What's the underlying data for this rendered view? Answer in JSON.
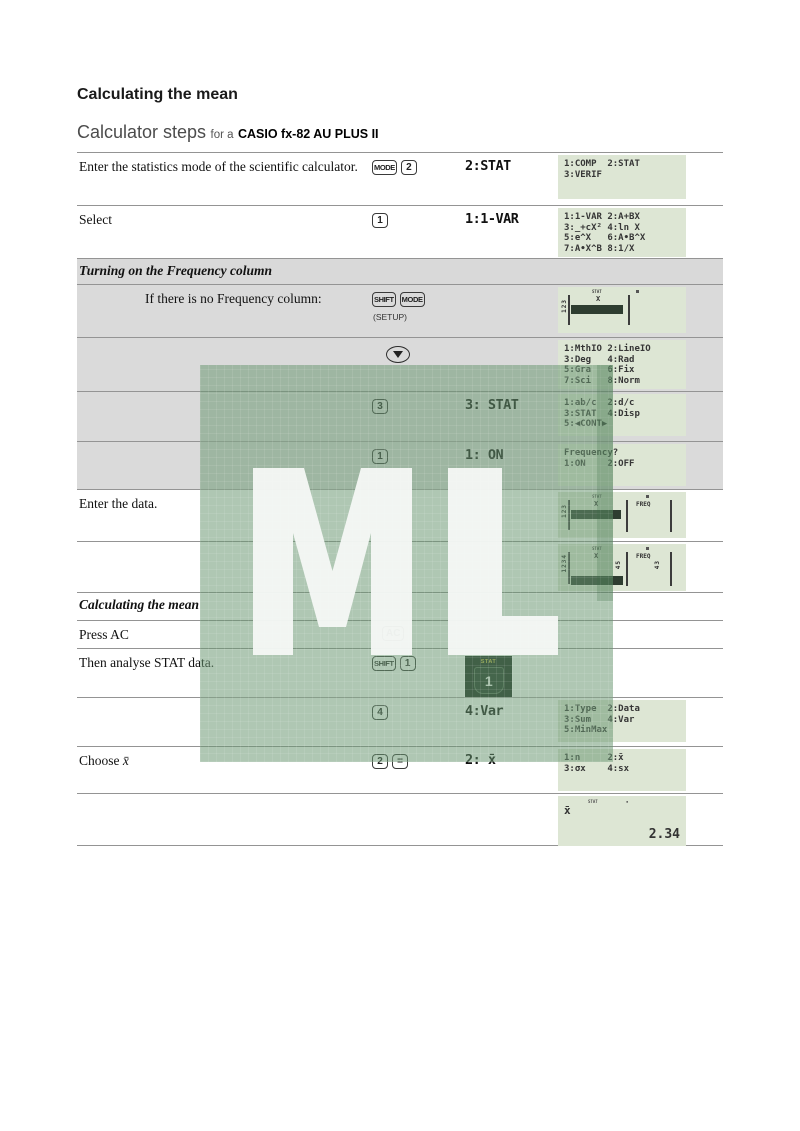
{
  "page": {
    "title": "Calculating the mean",
    "subtitle_main": "Calculator steps",
    "subtitle_mid": "for a",
    "subtitle_model": "CASIO fx-82 AU PLUS II"
  },
  "sections": {
    "freq": "Turning on the Frequency column",
    "mean": "Calculating the mean"
  },
  "rows": {
    "r1": {
      "instruction": "Enter the statistics mode of the scientific calculator.",
      "keys": [
        "MODE",
        "2"
      ],
      "display": "2:STAT",
      "screen": [
        "1:COMP  2:STAT",
        "3:VERIF"
      ]
    },
    "r2": {
      "instruction": "Select",
      "keys": [
        "1"
      ],
      "display": "1:1-VAR",
      "screen": [
        "1:1-VAR 2:A+BX",
        "3:_+cX² 4:ln X",
        "5:e^X   6:A•B^X",
        "7:A•X^B 8:1/X"
      ]
    },
    "r4": {
      "instruction": "If there is no Frequency column:",
      "keys": [
        "SHIFT",
        "MODE"
      ],
      "caption": "(SETUP)"
    },
    "r5": {
      "screen": [
        "1:MthIO 2:LineIO",
        "3:Deg   4:Rad",
        "5:Gra   6:Fix",
        "7:Sci   8:Norm"
      ]
    },
    "r6": {
      "keys": [
        "3"
      ],
      "display": "3: STAT",
      "screen": [
        "1:ab/c  2:d/c",
        "3:STAT  4:Disp",
        "5:◀CONT▶"
      ]
    },
    "r7": {
      "keys": [
        "1"
      ],
      "display": "1: ON",
      "screen": [
        "Frequency?",
        "1:ON    2:OFF"
      ]
    },
    "r8": {
      "instruction": "Enter the data."
    },
    "r11": {
      "instruction": "Press AC",
      "keys": [
        "AC"
      ]
    },
    "r12": {
      "instruction": "Then analyse STAT data.",
      "keys": [
        "SHIFT",
        "1"
      ],
      "statkey": {
        "label": "STAT",
        "digit": "1"
      }
    },
    "r13": {
      "keys": [
        "4"
      ],
      "display": "4:Var",
      "screen": [
        "1:Type  2:Data",
        "3:Sum   4:Var",
        "5:MinMax"
      ]
    },
    "r14": {
      "instruction_prefix": "Choose ",
      "instruction_var": "x̄",
      "keys": [
        "2",
        "="
      ],
      "display": "2: x̄",
      "screen": [
        "1:n     2:x̄",
        "3:σx    4:sx"
      ]
    },
    "r15": {
      "screen_symbol": "x̄",
      "screen_value": "2.34",
      "indicator": "STAT"
    }
  },
  "editor_screens": {
    "setup": {
      "stat_indicator": "STAT",
      "x_label": "X",
      "rows": "123"
    },
    "freq_empty": {
      "stat_indicator": "STAT",
      "x_label": "X",
      "freq_label": "FREQ",
      "rows": "123"
    },
    "freq_data": {
      "stat_indicator": "STAT",
      "x_label": "X",
      "freq_label": "FREQ",
      "rows": "1234",
      "x_values": "45",
      "freq_values": "43"
    }
  },
  "watermark": {
    "letters": "ML",
    "color": "#689670"
  }
}
